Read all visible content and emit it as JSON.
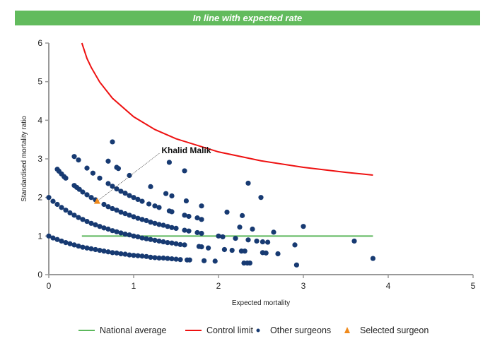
{
  "banner": "In line with expected rate",
  "chart_data": {
    "type": "scatter",
    "xlabel": "Expected mortality",
    "ylabel": "Standardised mortality ratio",
    "xlim": [
      0,
      5
    ],
    "ylim": [
      0,
      6
    ],
    "xticks": [
      "0",
      "1",
      "2",
      "3",
      "4",
      "5"
    ],
    "yticks": [
      "0",
      "1",
      "2",
      "3",
      "4",
      "5",
      "6"
    ],
    "grid": false,
    "legend_position": "bottom",
    "colors": {
      "national_average": "#5cb85c",
      "control_limit": "#ee1111",
      "other_surgeons": "#173a72",
      "selected_surgeon": "#f08a1c",
      "banner": "#62bb5d"
    },
    "series": [
      {
        "name": "National average",
        "type": "line",
        "points": [
          [
            0.39,
            1
          ],
          [
            3.82,
            1
          ]
        ]
      },
      {
        "name": "Control limit",
        "type": "line",
        "points": [
          [
            0.39,
            6.0
          ],
          [
            0.45,
            5.6
          ],
          [
            0.5,
            5.37
          ],
          [
            0.6,
            4.99
          ],
          [
            0.75,
            4.57
          ],
          [
            1,
            4.09
          ],
          [
            1.25,
            3.76
          ],
          [
            1.5,
            3.52
          ],
          [
            2,
            3.18
          ],
          [
            2.5,
            2.95
          ],
          [
            3,
            2.78
          ],
          [
            3.5,
            2.65
          ],
          [
            3.82,
            2.58
          ]
        ]
      },
      {
        "name": "Other surgeons",
        "type": "scatter",
        "points": [
          [
            0,
            1.0
          ],
          [
            0.05,
            0.95
          ],
          [
            0.1,
            0.91
          ],
          [
            0.15,
            0.87
          ],
          [
            0.2,
            0.83
          ],
          [
            0.25,
            0.8
          ],
          [
            0.3,
            0.77
          ],
          [
            0.35,
            0.74
          ],
          [
            0.4,
            0.71
          ],
          [
            0.45,
            0.69
          ],
          [
            0.5,
            0.67
          ],
          [
            0.55,
            0.65
          ],
          [
            0.6,
            0.63
          ],
          [
            0.65,
            0.61
          ],
          [
            0.7,
            0.59
          ],
          [
            0.75,
            0.57
          ],
          [
            0.8,
            0.56
          ],
          [
            0.85,
            0.54
          ],
          [
            0.9,
            0.53
          ],
          [
            0.95,
            0.51
          ],
          [
            1.0,
            0.5
          ],
          [
            1.05,
            0.49
          ],
          [
            1.1,
            0.48
          ],
          [
            1.15,
            0.47
          ],
          [
            1.2,
            0.45
          ],
          [
            1.25,
            0.44
          ],
          [
            1.3,
            0.43
          ],
          [
            1.35,
            0.43
          ],
          [
            1.4,
            0.42
          ],
          [
            1.45,
            0.41
          ],
          [
            1.5,
            0.4
          ],
          [
            1.55,
            0.39
          ],
          [
            1.63,
            0.38
          ],
          [
            1.66,
            0.38
          ],
          [
            1.83,
            0.36
          ],
          [
            1.96,
            0.35
          ],
          [
            2.3,
            0.3
          ],
          [
            2.34,
            0.3
          ],
          [
            2.37,
            0.3
          ],
          [
            2.92,
            0.25
          ],
          [
            0,
            2.0
          ],
          [
            0.05,
            1.9
          ],
          [
            0.1,
            1.82
          ],
          [
            0.15,
            1.74
          ],
          [
            0.2,
            1.67
          ],
          [
            0.25,
            1.6
          ],
          [
            0.3,
            1.54
          ],
          [
            0.35,
            1.48
          ],
          [
            0.4,
            1.43
          ],
          [
            0.45,
            1.38
          ],
          [
            0.5,
            1.33
          ],
          [
            0.55,
            1.29
          ],
          [
            0.6,
            1.25
          ],
          [
            0.65,
            1.21
          ],
          [
            0.7,
            1.18
          ],
          [
            0.75,
            1.14
          ],
          [
            0.8,
            1.11
          ],
          [
            0.85,
            1.08
          ],
          [
            0.9,
            1.05
          ],
          [
            0.95,
            1.03
          ],
          [
            1.0,
            1.0
          ],
          [
            1.05,
            0.98
          ],
          [
            1.1,
            0.95
          ],
          [
            1.15,
            0.93
          ],
          [
            1.2,
            0.91
          ],
          [
            1.25,
            0.89
          ],
          [
            1.3,
            0.87
          ],
          [
            1.35,
            0.85
          ],
          [
            1.4,
            0.83
          ],
          [
            1.45,
            0.82
          ],
          [
            1.5,
            0.8
          ],
          [
            1.55,
            0.78
          ],
          [
            1.6,
            0.77
          ],
          [
            1.77,
            0.73
          ],
          [
            1.8,
            0.72
          ],
          [
            1.88,
            0.69
          ],
          [
            2.07,
            0.65
          ],
          [
            2.16,
            0.63
          ],
          [
            2.27,
            0.61
          ],
          [
            2.31,
            0.61
          ],
          [
            2.52,
            0.57
          ],
          [
            2.56,
            0.56
          ],
          [
            2.7,
            0.54
          ],
          [
            0.1,
            2.73
          ],
          [
            0.12,
            2.68
          ],
          [
            0.15,
            2.61
          ],
          [
            0.18,
            2.54
          ],
          [
            0.2,
            2.5
          ],
          [
            0.3,
            2.31
          ],
          [
            0.33,
            2.26
          ],
          [
            0.36,
            2.21
          ],
          [
            0.4,
            2.14
          ],
          [
            0.45,
            2.07
          ],
          [
            0.5,
            2.0
          ],
          [
            0.55,
            1.94
          ],
          [
            0.65,
            1.82
          ],
          [
            0.7,
            1.76
          ],
          [
            0.75,
            1.71
          ],
          [
            0.8,
            1.67
          ],
          [
            0.85,
            1.62
          ],
          [
            0.9,
            1.58
          ],
          [
            0.95,
            1.54
          ],
          [
            1.0,
            1.5
          ],
          [
            1.05,
            1.46
          ],
          [
            1.1,
            1.43
          ],
          [
            1.15,
            1.4
          ],
          [
            1.2,
            1.36
          ],
          [
            1.25,
            1.33
          ],
          [
            1.3,
            1.3
          ],
          [
            1.35,
            1.28
          ],
          [
            1.4,
            1.25
          ],
          [
            1.45,
            1.22
          ],
          [
            1.5,
            1.2
          ],
          [
            1.6,
            1.15
          ],
          [
            1.65,
            1.13
          ],
          [
            1.75,
            1.09
          ],
          [
            1.8,
            1.07
          ],
          [
            2.0,
            1.0
          ],
          [
            2.05,
            0.98
          ],
          [
            2.2,
            0.94
          ],
          [
            2.35,
            0.9
          ],
          [
            2.45,
            0.87
          ],
          [
            2.52,
            0.85
          ],
          [
            2.58,
            0.84
          ],
          [
            2.9,
            0.77
          ],
          [
            0.3,
            3.06
          ],
          [
            0.35,
            2.97
          ],
          [
            0.45,
            2.76
          ],
          [
            0.52,
            2.63
          ],
          [
            0.6,
            2.5
          ],
          [
            0.7,
            2.36
          ],
          [
            0.75,
            2.29
          ],
          [
            0.8,
            2.22
          ],
          [
            0.85,
            2.16
          ],
          [
            0.9,
            2.11
          ],
          [
            0.95,
            2.05
          ],
          [
            1.0,
            2.0
          ],
          [
            1.05,
            1.95
          ],
          [
            1.1,
            1.9
          ],
          [
            1.18,
            1.83
          ],
          [
            1.25,
            1.78
          ],
          [
            1.3,
            1.74
          ],
          [
            1.42,
            1.65
          ],
          [
            1.45,
            1.63
          ],
          [
            1.6,
            1.54
          ],
          [
            1.65,
            1.51
          ],
          [
            1.75,
            1.47
          ],
          [
            1.8,
            1.43
          ],
          [
            2.25,
            1.23
          ],
          [
            2.4,
            1.18
          ],
          [
            2.65,
            1.1
          ],
          [
            0.7,
            2.94
          ],
          [
            0.8,
            2.78
          ],
          [
            0.82,
            2.75
          ],
          [
            0.95,
            2.57
          ],
          [
            1.2,
            2.28
          ],
          [
            1.38,
            2.1
          ],
          [
            1.45,
            2.04
          ],
          [
            1.62,
            1.91
          ],
          [
            1.8,
            1.78
          ],
          [
            2.1,
            1.62
          ],
          [
            2.28,
            1.53
          ],
          [
            3.0,
            1.25
          ],
          [
            0.75,
            3.44
          ],
          [
            1.42,
            2.91
          ],
          [
            1.6,
            2.69
          ],
          [
            2.35,
            2.37
          ],
          [
            2.5,
            2.0
          ],
          [
            3.6,
            0.87
          ],
          [
            3.82,
            0.42
          ]
        ]
      },
      {
        "name": "Selected surgeon",
        "type": "scatter",
        "points": [
          [
            0.57,
            1.9
          ]
        ],
        "label": "Khalid Malik"
      }
    ]
  },
  "legend": [
    "National average",
    "Control limit",
    "Other surgeons",
    "Selected surgeon"
  ]
}
